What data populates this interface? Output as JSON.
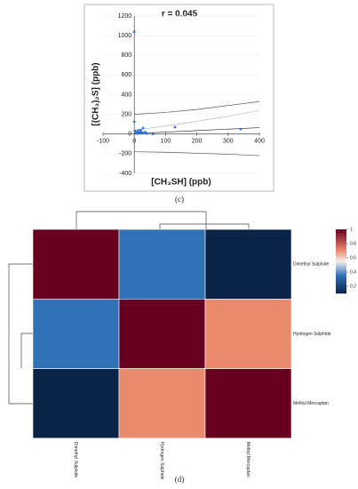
{
  "chart_data": [
    {
      "type": "scatter",
      "title": "r = 0.045",
      "xlabel": "[CH₃SH] (ppb)",
      "ylabel": "[(CH₃)₂S] (ppb)",
      "caption": "(c)",
      "x": [
        0,
        0,
        2,
        5,
        8,
        10,
        12,
        15,
        18,
        20,
        22,
        25,
        28,
        30,
        35,
        40,
        60,
        130,
        340
      ],
      "values": [
        1040,
        125,
        30,
        10,
        20,
        5,
        35,
        15,
        8,
        40,
        25,
        12,
        60,
        10,
        20,
        5,
        0,
        70,
        50
      ],
      "color": "#2f6fd6",
      "lines": [
        {
          "x": [
            0,
            100,
            200,
            300,
            400
          ],
          "values": [
            200,
            220,
            250,
            290,
            330
          ],
          "color": "#555555"
        },
        {
          "x": [
            0,
            100,
            200,
            300,
            400
          ],
          "values": [
            40,
            80,
            130,
            180,
            240
          ],
          "color": "#bbbbbb"
        },
        {
          "x": [
            0,
            100,
            200,
            300,
            400
          ],
          "values": [
            5,
            20,
            35,
            50,
            65
          ],
          "color": "#333333"
        },
        {
          "x": [
            0,
            100,
            200,
            300,
            400
          ],
          "values": [
            -180,
            -185,
            -195,
            -205,
            -220
          ],
          "color": "#555555"
        }
      ],
      "xlim": [
        -100,
        400
      ],
      "xticks": [
        -100,
        0,
        100,
        200,
        300,
        400
      ],
      "ylim": [
        -400,
        1200
      ],
      "yticks": [
        -400,
        -200,
        0,
        200,
        400,
        600,
        800,
        1000,
        1200
      ],
      "grid": true
    },
    {
      "type": "heatmap",
      "caption": "(d)",
      "columns": [
        "Dimethyl Sulphide",
        "Hydrogen Sulphide",
        "Methyl Mercaptan"
      ],
      "rows": [
        "Dimethyl Sulphide",
        "Hydrogen Sulphide",
        "Methyl Mercaptan"
      ],
      "values": [
        [
          1,
          0.35,
          0.1
        ],
        [
          0.35,
          1,
          0.7
        ],
        [
          0.1,
          0.7,
          1
        ]
      ],
      "colorscale": [
        [
          0.1,
          "#0a2447"
        ],
        [
          0.35,
          "#2f72b5"
        ],
        [
          0.55,
          "#f4f0ee"
        ],
        [
          0.7,
          "#ea8a6d"
        ],
        [
          1,
          "#68001f"
        ]
      ],
      "clim": [
        0.1,
        1
      ],
      "cticks": [
        0.2,
        0.4,
        0.6,
        0.8,
        1
      ]
    }
  ]
}
